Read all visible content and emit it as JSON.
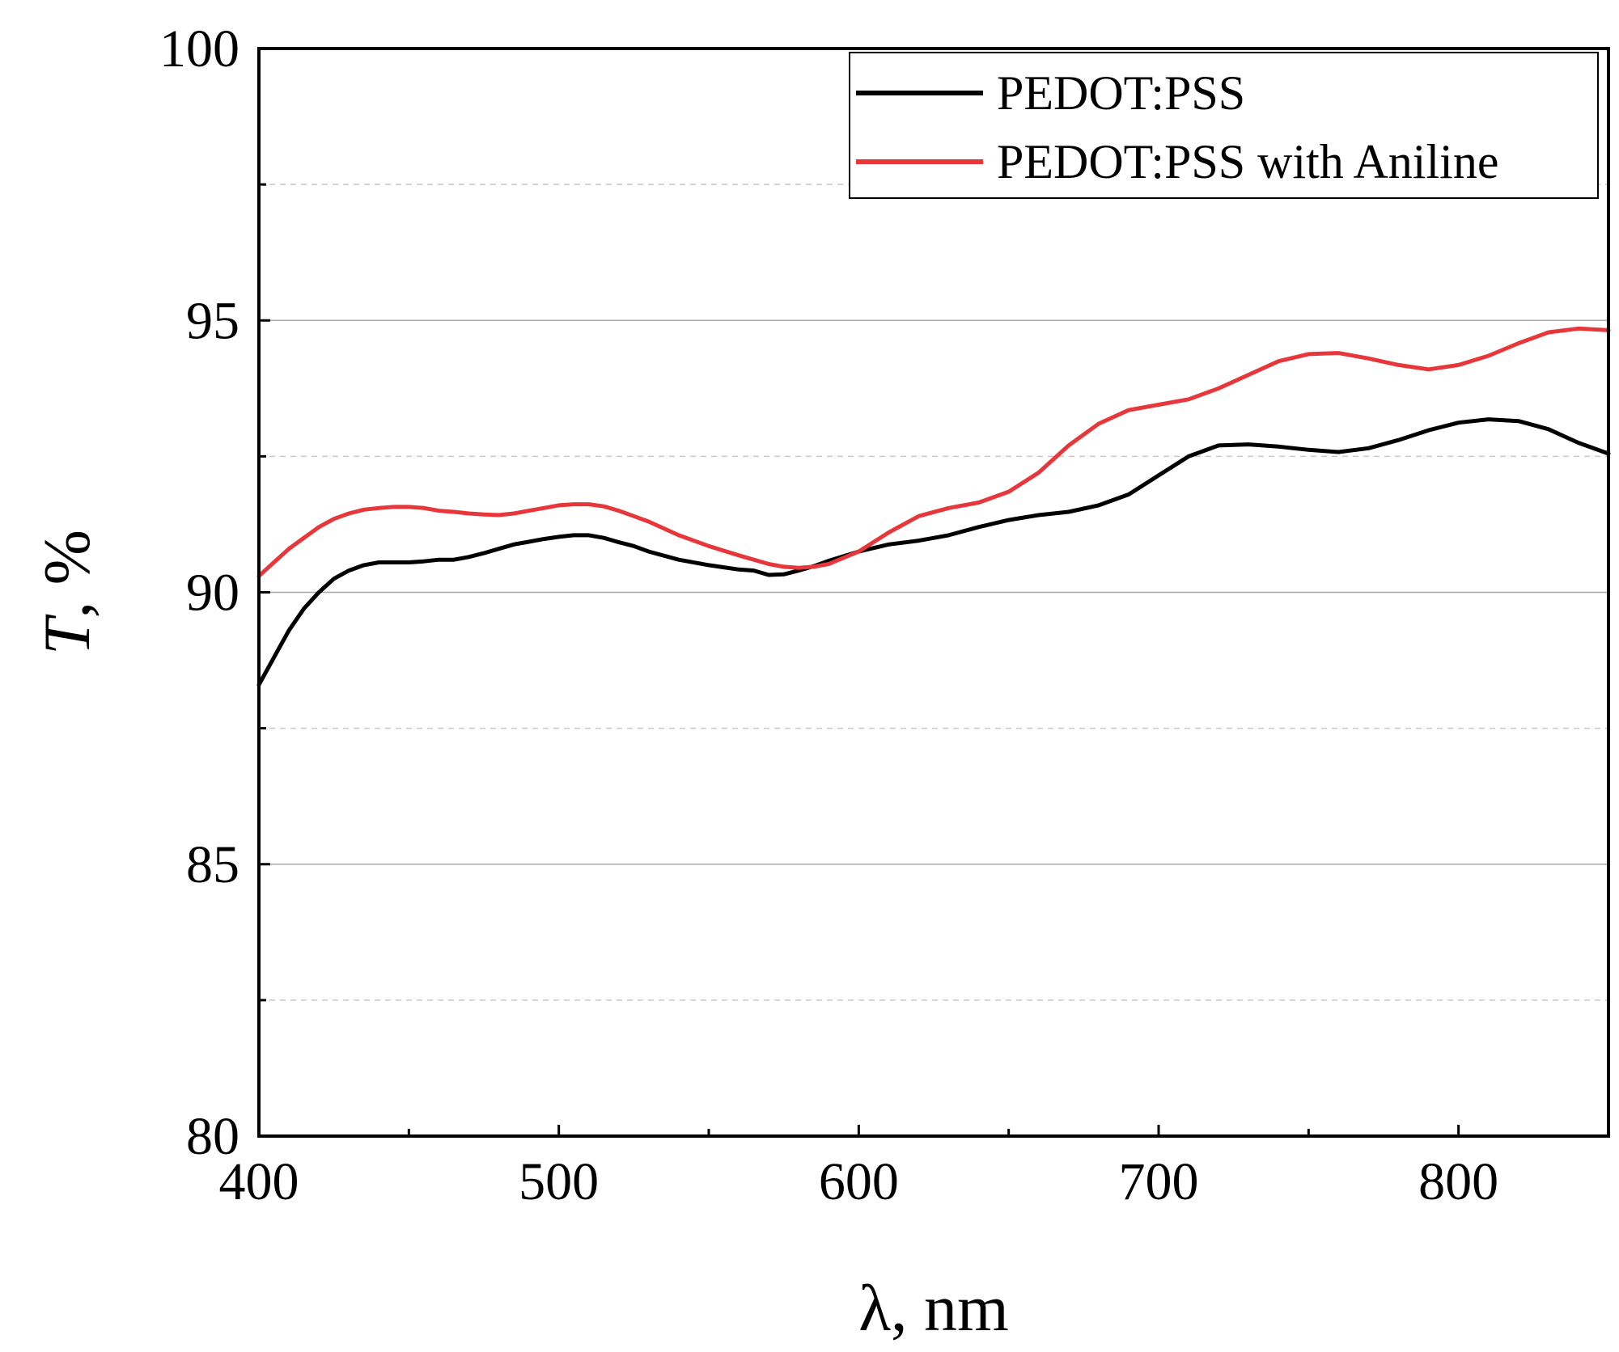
{
  "chart_data": {
    "type": "line",
    "title": "",
    "xlabel": "λ, nm",
    "ylabel_italic": "T",
    "ylabel_rest": ", %",
    "xlim": [
      400,
      850
    ],
    "ylim": [
      80,
      100
    ],
    "x_ticks": [
      400,
      500,
      600,
      700,
      800
    ],
    "x_minor_ticks": [
      450,
      550,
      650,
      750,
      850
    ],
    "y_ticks": [
      80,
      85,
      90,
      95,
      100
    ],
    "y_minor_gridlines": [
      82.5,
      87.5,
      92.5,
      97.5
    ],
    "grid": true,
    "legend_position": "top-right",
    "series": [
      {
        "name": "PEDOT:PSS",
        "color": "#000000",
        "x": [
          400,
          405,
          410,
          415,
          420,
          425,
          430,
          435,
          440,
          445,
          450,
          455,
          460,
          465,
          470,
          475,
          480,
          485,
          490,
          495,
          500,
          505,
          510,
          515,
          520,
          525,
          530,
          540,
          550,
          560,
          565,
          570,
          575,
          580,
          585,
          590,
          600,
          610,
          620,
          630,
          640,
          650,
          660,
          670,
          680,
          690,
          700,
          710,
          720,
          730,
          740,
          750,
          760,
          770,
          780,
          790,
          800,
          810,
          820,
          830,
          840,
          850
        ],
        "values": [
          88.3,
          88.8,
          89.3,
          89.7,
          90.0,
          90.25,
          90.4,
          90.5,
          90.55,
          90.55,
          90.55,
          90.57,
          90.6,
          90.6,
          90.65,
          90.72,
          90.8,
          90.88,
          90.93,
          90.98,
          91.02,
          91.05,
          91.05,
          91.0,
          90.92,
          90.85,
          90.75,
          90.6,
          90.5,
          90.42,
          90.4,
          90.32,
          90.33,
          90.4,
          90.48,
          90.58,
          90.75,
          90.88,
          90.95,
          91.05,
          91.2,
          91.33,
          91.42,
          91.48,
          91.6,
          91.8,
          92.15,
          92.5,
          92.7,
          92.72,
          92.68,
          92.62,
          92.58,
          92.65,
          92.8,
          92.98,
          93.12,
          93.18,
          93.15,
          93.0,
          92.75,
          92.55
        ]
      },
      {
        "name": "PEDOT:PSS with Aniline",
        "color": "#e8373b",
        "x": [
          400,
          405,
          410,
          415,
          420,
          425,
          430,
          435,
          440,
          445,
          450,
          455,
          460,
          465,
          470,
          475,
          480,
          485,
          490,
          495,
          500,
          505,
          510,
          515,
          520,
          525,
          530,
          540,
          550,
          560,
          570,
          575,
          580,
          585,
          590,
          600,
          610,
          620,
          630,
          640,
          650,
          660,
          670,
          680,
          690,
          700,
          710,
          720,
          730,
          740,
          750,
          760,
          770,
          780,
          790,
          800,
          810,
          820,
          830,
          840,
          850
        ],
        "values": [
          90.3,
          90.55,
          90.8,
          91.0,
          91.2,
          91.35,
          91.45,
          91.52,
          91.55,
          91.57,
          91.57,
          91.55,
          91.5,
          91.48,
          91.45,
          91.43,
          91.42,
          91.45,
          91.5,
          91.55,
          91.6,
          91.62,
          91.62,
          91.58,
          91.5,
          91.4,
          91.3,
          91.05,
          90.85,
          90.68,
          90.52,
          90.47,
          90.45,
          90.47,
          90.52,
          90.75,
          91.1,
          91.4,
          91.55,
          91.65,
          91.85,
          92.2,
          92.7,
          93.1,
          93.35,
          93.45,
          93.55,
          93.75,
          94.0,
          94.25,
          94.38,
          94.4,
          94.3,
          94.18,
          94.1,
          94.18,
          94.35,
          94.58,
          94.78,
          94.85,
          94.82
        ]
      }
    ]
  }
}
